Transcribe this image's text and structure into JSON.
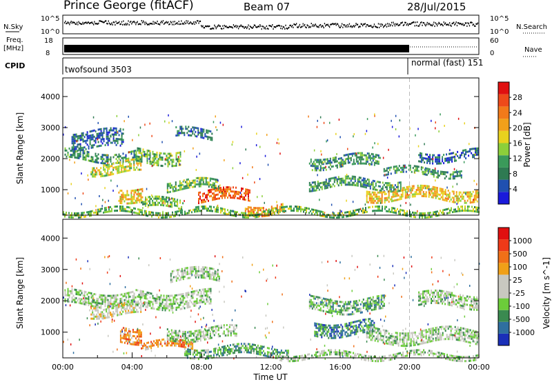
{
  "header": {
    "station": "Prince George (fitACF)",
    "beam": "Beam 07",
    "date": "28/Jul/2015"
  },
  "top_panels": {
    "nsky_label": "N.Sky",
    "nsearch_label": "N.Search",
    "noise_ticks": [
      "10^5",
      "10^0"
    ],
    "freq_label_1": "Freq.",
    "freq_label_2": "[MHz]",
    "freq_ticks": [
      "18",
      "8"
    ],
    "nave_label": "Nave",
    "nave_ticks": [
      "60",
      "0"
    ],
    "cpid_label": "CPID",
    "cpid_left": "twofsound 3503",
    "cpid_right": "normal (fast) 151"
  },
  "colors": {
    "power_scale": [
      "#1a1adb",
      "#2050b0",
      "#2e7a52",
      "#3a9a5a",
      "#8ccf3a",
      "#e8d21e",
      "#f2a01a",
      "#f27a1a",
      "#ee4a1a",
      "#e01010"
    ],
    "velocity_scale": [
      "#1a2fb8",
      "#2f6fa0",
      "#3a8a50",
      "#6ccc3a",
      "#c8c8c0",
      "#c8c8c0",
      "#f0a018",
      "#f07018",
      "#ee3a18",
      "#e01010"
    ]
  },
  "chart_data": [
    {
      "type": "heatmap",
      "title": "",
      "xlabel": "Time UT",
      "ylabel": "Slant Range [km]",
      "colorbar_label": "Power [dB]",
      "colorbar_ticks": [
        "28",
        "24",
        "20",
        "16",
        "12",
        "8",
        "4"
      ],
      "x_ticks": [
        "00:00",
        "04:00",
        "08:00",
        "12:00",
        "16:00",
        "20:00",
        "00:00"
      ],
      "y_ticks": [
        "4000",
        "3000",
        "2000",
        "1000"
      ],
      "xlim": [
        0,
        24
      ],
      "ylim": [
        180,
        4600
      ],
      "clim": [
        0,
        30
      ],
      "bands": [
        {
          "t0": 0.1,
          "t1": 4.2,
          "r0": 1950,
          "r1": 2250,
          "level": 3
        },
        {
          "t0": 1.6,
          "t1": 4.5,
          "r0": 1550,
          "r1": 1900,
          "level": 5
        },
        {
          "t0": 4.2,
          "t1": 6.8,
          "r0": 1900,
          "r1": 2300,
          "level": 4
        },
        {
          "t0": 0.5,
          "t1": 3.5,
          "r0": 2350,
          "r1": 2900,
          "level": 2
        },
        {
          "t0": 6.5,
          "t1": 8.6,
          "r0": 2650,
          "r1": 2950,
          "level": 2
        },
        {
          "t0": 3.2,
          "t1": 4.6,
          "r0": 700,
          "r1": 1100,
          "level": 6
        },
        {
          "t0": 4.5,
          "t1": 7.0,
          "r0": 400,
          "r1": 700,
          "level": 4
        },
        {
          "t0": 7.8,
          "t1": 10.8,
          "r0": 650,
          "r1": 1000,
          "level": 8
        },
        {
          "t0": 10.5,
          "t1": 12.8,
          "r0": 250,
          "r1": 550,
          "level": 7
        },
        {
          "t0": 6.0,
          "t1": 9.0,
          "r0": 1000,
          "r1": 1300,
          "level": 4
        },
        {
          "t0": 14.2,
          "t1": 18.3,
          "r0": 1750,
          "r1": 2100,
          "level": 3
        },
        {
          "t0": 14.2,
          "t1": 19.5,
          "r0": 1050,
          "r1": 1350,
          "level": 3
        },
        {
          "t0": 17.5,
          "t1": 24.0,
          "r0": 700,
          "r1": 1050,
          "level": 6
        },
        {
          "t0": 18.5,
          "t1": 23.0,
          "r0": 1450,
          "r1": 1700,
          "level": 3
        },
        {
          "t0": 20.5,
          "t1": 24.0,
          "r0": 1950,
          "r1": 2250,
          "level": 2
        },
        {
          "t0": 0.0,
          "t1": 24.0,
          "r0": 200,
          "r1": 380,
          "level": 4
        }
      ]
    },
    {
      "type": "heatmap",
      "title": "",
      "xlabel": "Time UT",
      "ylabel": "Slant Range [km]",
      "colorbar_label": "Velocity [m s^-1]",
      "colorbar_ticks": [
        "1000",
        "500",
        "100",
        "25",
        "-25",
        "-100",
        "-500",
        "-1000"
      ],
      "x_ticks": [
        "00:00",
        "04:00",
        "08:00",
        "12:00",
        "16:00",
        "20:00",
        "00:00"
      ],
      "y_ticks": [
        "4000",
        "3000",
        "2000",
        "1000"
      ],
      "xlim": [
        0,
        24
      ],
      "ylim": [
        180,
        4600
      ],
      "clim": [
        -1000,
        1000
      ],
      "bands": [
        {
          "t0": 0.1,
          "t1": 4.2,
          "r0": 1900,
          "r1": 2300,
          "level": 4
        },
        {
          "t0": 1.6,
          "t1": 4.5,
          "r0": 1550,
          "r1": 1900,
          "level": 5
        },
        {
          "t0": 4.2,
          "t1": 8.5,
          "r0": 1800,
          "r1": 2300,
          "level": 4
        },
        {
          "t0": 6.2,
          "t1": 9.0,
          "r0": 2650,
          "r1": 3000,
          "level": 4
        },
        {
          "t0": 3.3,
          "t1": 4.5,
          "r0": 700,
          "r1": 1200,
          "level": 7
        },
        {
          "t0": 4.5,
          "t1": 7.5,
          "r0": 450,
          "r1": 700,
          "level": 7
        },
        {
          "t0": 7.0,
          "t1": 13.0,
          "r0": 250,
          "r1": 550,
          "level": 3
        },
        {
          "t0": 6.0,
          "t1": 10.0,
          "r0": 800,
          "r1": 1150,
          "level": 4
        },
        {
          "t0": 14.2,
          "t1": 18.5,
          "r0": 1700,
          "r1": 2100,
          "level": 3
        },
        {
          "t0": 14.5,
          "t1": 18.0,
          "r0": 900,
          "r1": 1350,
          "level": 2
        },
        {
          "t0": 17.5,
          "t1": 24.0,
          "r0": 650,
          "r1": 1100,
          "level": 4
        },
        {
          "t0": 20.5,
          "t1": 24.0,
          "r0": 1850,
          "r1": 2250,
          "level": 4
        },
        {
          "t0": 12.5,
          "t1": 24.0,
          "r0": 200,
          "r1": 350,
          "level": 4
        }
      ]
    }
  ]
}
